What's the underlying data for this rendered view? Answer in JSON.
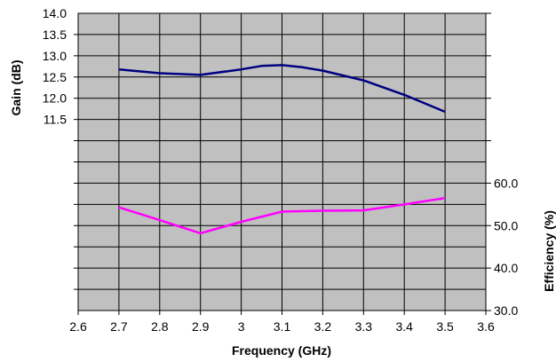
{
  "chart_data": {
    "type": "line",
    "xlabel": "Frequency (GHz)",
    "ylabel_left": "Gain (dB)",
    "ylabel_right": "Efficiency (%)",
    "xlim": [
      2.6,
      3.6
    ],
    "x_ticks": [
      "2.6",
      "2.7",
      "2.8",
      "2.9",
      "3",
      "3.1",
      "3.2",
      "3.3",
      "3.4",
      "3.5",
      "3.6"
    ],
    "y_left_lim": [
      7.0,
      14.0
    ],
    "y_left_ticks": [
      "11.5",
      "12.0",
      "12.5",
      "13.0",
      "13.5",
      "14.0"
    ],
    "y_right_lim": [
      30.0,
      100.0
    ],
    "y_right_ticks": [
      "30.0",
      "40.0",
      "50.0",
      "60.0"
    ],
    "grid": true,
    "plot_background": "#c0c0c0",
    "series": [
      {
        "axis": "left",
        "color": "#000080",
        "x": [
          2.7,
          2.8,
          2.9,
          3.0,
          3.05,
          3.1,
          3.15,
          3.2,
          3.3,
          3.4,
          3.5
        ],
        "y": [
          12.68,
          12.59,
          12.55,
          12.68,
          12.76,
          12.78,
          12.73,
          12.65,
          12.42,
          12.08,
          11.68
        ]
      },
      {
        "axis": "right",
        "color": "#ff00ff",
        "x": [
          2.7,
          2.8,
          2.9,
          3.0,
          3.1,
          3.2,
          3.3,
          3.4,
          3.5
        ],
        "y": [
          54.3,
          51.3,
          48.2,
          50.9,
          53.3,
          53.5,
          53.6,
          55.0,
          56.5
        ]
      }
    ]
  }
}
